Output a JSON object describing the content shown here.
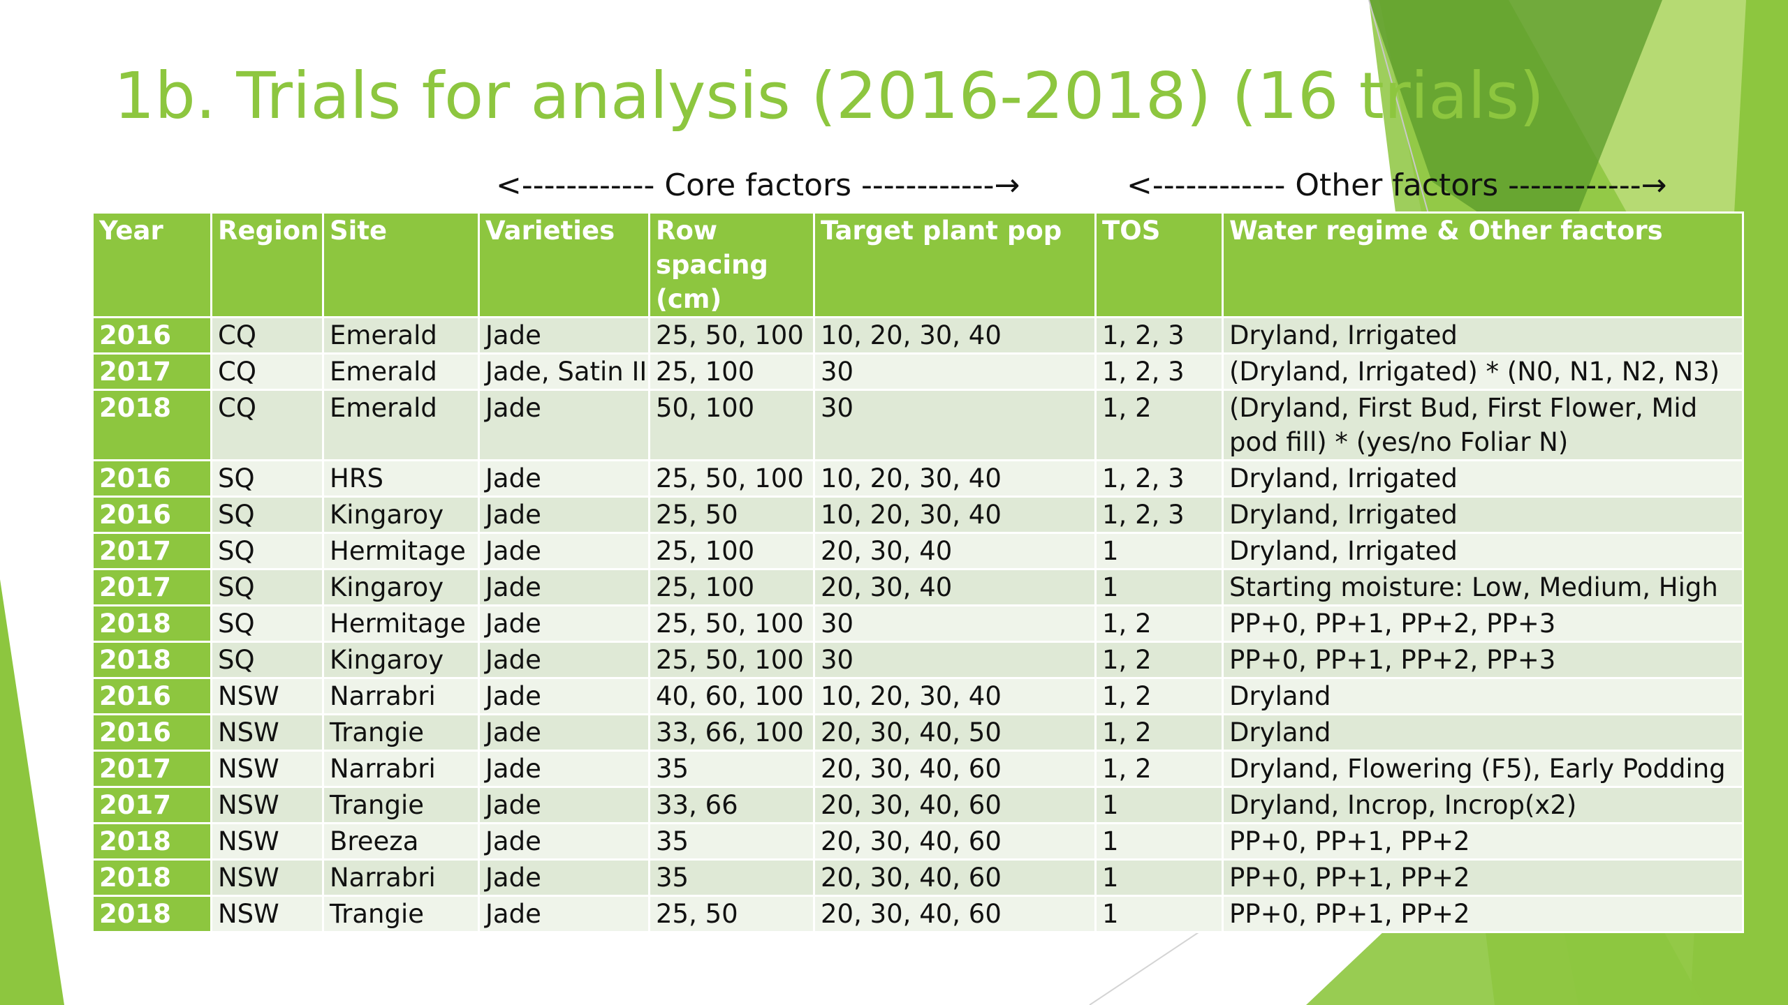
{
  "slide": {
    "title": "1b. Trials for analysis (2016-2018) (16 trials)",
    "core_factors": "<------------ Core factors ------------→",
    "other_factors": "<------------ Other factors ------------→"
  },
  "colors": {
    "accent": "#8dc63f",
    "row_dark": "#dfe9d6",
    "row_light": "#eff4ea",
    "dark_green": "#5a9a2a"
  },
  "table": {
    "headers": [
      "Year",
      "Region",
      "Site",
      "Varieties",
      "Row spacing (cm)",
      "Target plant pop",
      "TOS",
      "Water regime & Other factors"
    ],
    "rows": [
      [
        "2016",
        "CQ",
        "Emerald",
        "Jade",
        "25, 50, 100",
        "10, 20, 30, 40",
        "1, 2, 3",
        "Dryland, Irrigated"
      ],
      [
        "2017",
        "CQ",
        "Emerald",
        "Jade, Satin II",
        "25, 100",
        "30",
        "1, 2, 3",
        "(Dryland, Irrigated) * (N0, N1, N2, N3)"
      ],
      [
        "2018",
        "CQ",
        "Emerald",
        "Jade",
        "50, 100",
        "30",
        "1, 2",
        "(Dryland, First Bud, First Flower, Mid pod fill) * (yes/no Foliar N)"
      ],
      [
        "2016",
        "SQ",
        "HRS",
        "Jade",
        "25, 50, 100",
        "10, 20, 30, 40",
        "1, 2, 3",
        "Dryland, Irrigated"
      ],
      [
        "2016",
        "SQ",
        "Kingaroy",
        "Jade",
        "25, 50",
        "10, 20, 30, 40",
        "1, 2, 3",
        "Dryland, Irrigated"
      ],
      [
        "2017",
        "SQ",
        "Hermitage",
        "Jade",
        "25, 100",
        "20, 30, 40",
        "1",
        "Dryland, Irrigated"
      ],
      [
        "2017",
        "SQ",
        "Kingaroy",
        "Jade",
        "25, 100",
        "20, 30, 40",
        "1",
        "Starting moisture: Low, Medium, High"
      ],
      [
        "2018",
        "SQ",
        "Hermitage",
        "Jade",
        "25, 50, 100",
        "30",
        "1, 2",
        "PP+0, PP+1, PP+2, PP+3"
      ],
      [
        "2018",
        "SQ",
        "Kingaroy",
        "Jade",
        "25, 50, 100",
        "30",
        "1, 2",
        "PP+0, PP+1, PP+2, PP+3"
      ],
      [
        "2016",
        "NSW",
        "Narrabri",
        "Jade",
        "40, 60, 100",
        "10, 20, 30, 40",
        "1, 2",
        "Dryland"
      ],
      [
        "2016",
        "NSW",
        "Trangie",
        "Jade",
        "33, 66, 100",
        "20, 30, 40, 50",
        "1, 2",
        "Dryland"
      ],
      [
        "2017",
        "NSW",
        "Narrabri",
        "Jade",
        "35",
        "20, 30, 40, 60",
        "1, 2",
        "Dryland, Flowering (F5), Early Podding"
      ],
      [
        "2017",
        "NSW",
        "Trangie",
        "Jade",
        "33, 66",
        "20, 30, 40, 60",
        "1",
        "Dryland, Incrop, Incrop(x2)"
      ],
      [
        "2018",
        "NSW",
        "Breeza",
        "Jade",
        "35",
        "20, 30, 40, 60",
        "1",
        "PP+0, PP+1, PP+2"
      ],
      [
        "2018",
        "NSW",
        "Narrabri",
        "Jade",
        "35",
        "20, 30, 40, 60",
        "1",
        "PP+0, PP+1, PP+2"
      ],
      [
        "2018",
        "NSW",
        "Trangie",
        "Jade",
        "25, 50",
        "20, 30, 40, 60",
        "1",
        "PP+0, PP+1, PP+2"
      ]
    ]
  }
}
